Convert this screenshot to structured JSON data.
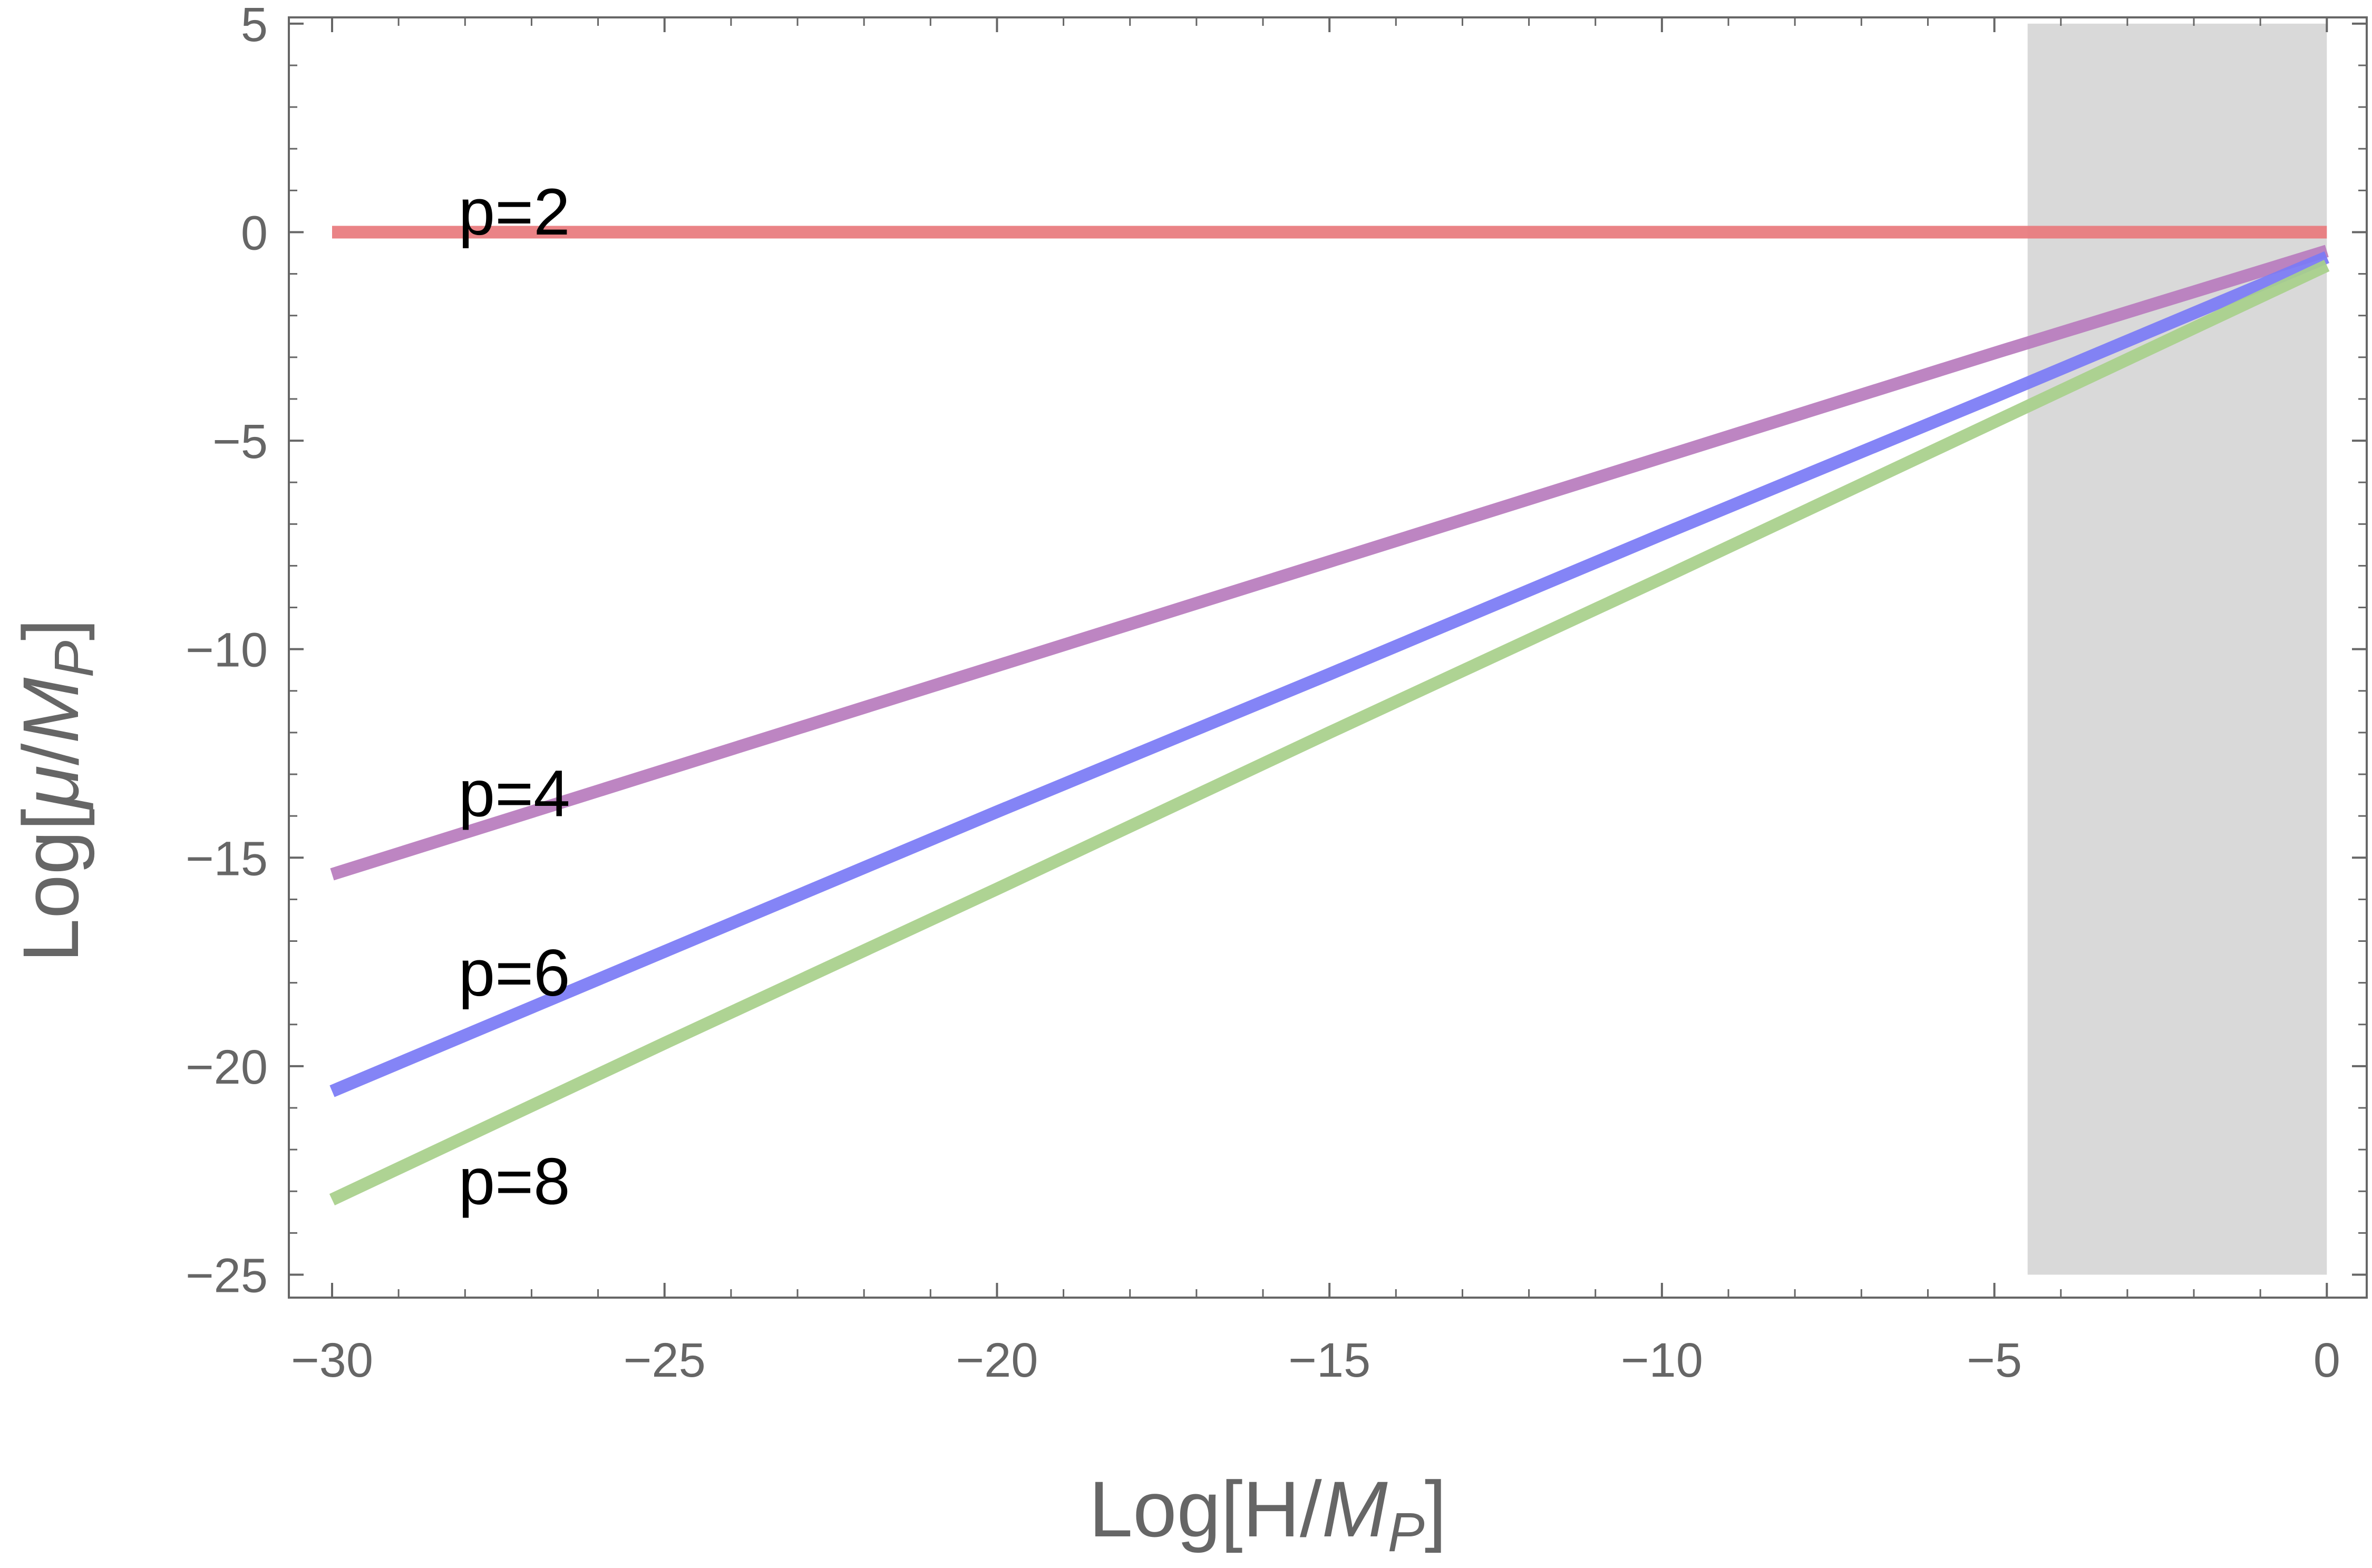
{
  "chart_data": {
    "type": "line",
    "title": "",
    "xlabel": {
      "prefix": "Log[H/",
      "symbol": "M",
      "subscript": "P",
      "suffix": "]"
    },
    "ylabel": {
      "prefix": "Log[",
      "mu": "μ",
      "slash": "/",
      "symbol": "M",
      "subscript": "P",
      "suffix": "]"
    },
    "xlim": [
      -30.65,
      0.6
    ],
    "ylim": [
      -25.55,
      5.15
    ],
    "x_ticks": [
      -30,
      -25,
      -20,
      -15,
      -10,
      -5,
      0
    ],
    "y_ticks": [
      5,
      0,
      -5,
      -10,
      -15,
      -20,
      -25
    ],
    "x_tick_labels": [
      "−30",
      "−25",
      "−20",
      "−15",
      "−10",
      "−5",
      "0"
    ],
    "y_tick_labels": [
      "5",
      "0",
      "−5",
      "−10",
      "−15",
      "−20",
      "−25"
    ],
    "x_minor_step": 1,
    "y_minor_step": 1,
    "grid": false,
    "shaded_region": {
      "x": [
        -4.5,
        0
      ],
      "y": [
        -25,
        5
      ],
      "color": "#d9d9d9"
    },
    "series": [
      {
        "name": "p=2",
        "color": "#e87a7d",
        "x": [
          -30,
          0
        ],
        "y": [
          0,
          0
        ],
        "label_pos": [
          -28.1,
          0.45
        ]
      },
      {
        "name": "p=4",
        "color": "#b87cbd",
        "x": [
          -30,
          -25,
          -20,
          -15,
          -10,
          -5,
          0
        ],
        "y": [
          -15.4,
          -12.9,
          -10.4,
          -7.9,
          -5.4,
          -2.9,
          -0.45
        ],
        "label_pos": [
          -28.1,
          -13.5
        ]
      },
      {
        "name": "p=6",
        "color": "#7b7bf5",
        "x": [
          -30,
          -25,
          -20,
          -15,
          -10,
          -5,
          0
        ],
        "y": [
          -20.6,
          -17.25,
          -13.9,
          -10.6,
          -7.25,
          -3.95,
          -0.6
        ],
        "label_pos": [
          -28.1,
          -17.8
        ]
      },
      {
        "name": "p=8",
        "color": "#a8d08b",
        "x": [
          -30,
          -25,
          -20,
          -15,
          -10,
          -5,
          0
        ],
        "y": [
          -23.2,
          -19.45,
          -15.75,
          -12.0,
          -8.3,
          -4.55,
          -0.8
        ],
        "label_pos": [
          -28.1,
          -22.8
        ]
      }
    ]
  }
}
